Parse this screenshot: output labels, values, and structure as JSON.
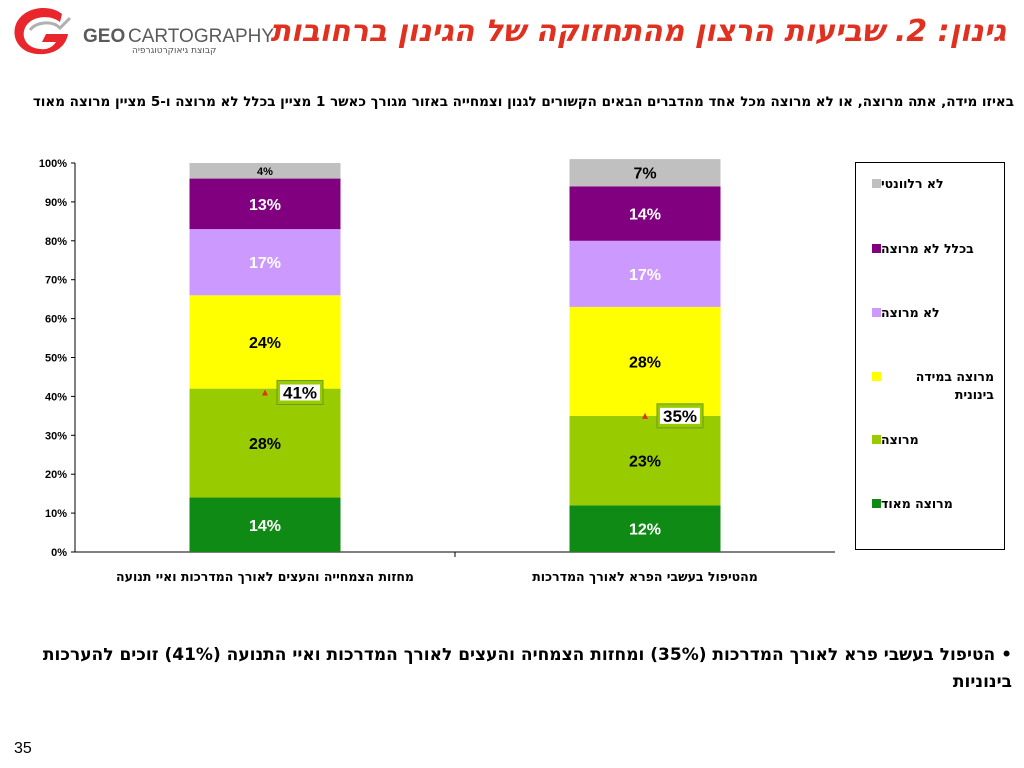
{
  "brand": {
    "geo": "GEO",
    "carto": "CARTOGRAPHY",
    "sub": "קבוצת גיאוקרטוגרפיה"
  },
  "title": "גינון: 2. שביעות הרצון מהתחזוקה של הגינון ברחובות",
  "question": "באיזו מידה, אתה מרוצה, או לא מרוצה מכל אחד מהדברים הבאים הקשורים לגנון וצמחייה באזור מגורך כאשר 1 מציין בכלל לא מרוצה ו-5 מציין מרוצה מאוד",
  "colors": {
    "very_satisfied": "#0f8a14",
    "satisfied": "#99cc00",
    "moderate": "#ffff00",
    "not_satisfied": "#cc99ff",
    "not_at_all": "#800080",
    "irrelevant": "#c0c0c0"
  },
  "chart_data": {
    "type": "bar",
    "stacked": true,
    "categories": [
      "מחזות הצמחייה והעצים לאורך המדרכות ואיי תנועה",
      "מהטיפול בעשבי הפרא לאורך המדרכות"
    ],
    "ylim": [
      0,
      100
    ],
    "yticks": [
      "0%",
      "10%",
      "20%",
      "30%",
      "40%",
      "50%",
      "60%",
      "70%",
      "80%",
      "90%",
      "100%"
    ],
    "series": [
      {
        "name": "מרוצה מאוד",
        "values": [
          14,
          12
        ],
        "labels": [
          "14%",
          "12%"
        ],
        "color": "#0f8a14",
        "label_color": "#ffffff"
      },
      {
        "name": "מרוצה",
        "values": [
          28,
          23
        ],
        "labels": [
          "28%",
          "23%"
        ],
        "color": "#99cc00",
        "label_color": "#000000"
      },
      {
        "name": "מרוצה במידה בינונית",
        "values": [
          24,
          28
        ],
        "labels": [
          "24%",
          "28%"
        ],
        "color": "#ffff00",
        "label_color": "#000000"
      },
      {
        "name": "לא מרוצה",
        "values": [
          17,
          17
        ],
        "labels": [
          "17%",
          "17%"
        ],
        "color": "#cc99ff",
        "label_color": "#ffffff"
      },
      {
        "name": "בכלל לא מרוצה",
        "values": [
          13,
          14
        ],
        "labels": [
          "13%",
          "14%"
        ],
        "color": "#800080",
        "label_color": "#ffffff"
      },
      {
        "name": "לא רלוונטי",
        "values": [
          4,
          7
        ],
        "labels": [
          "4%",
          "7%"
        ],
        "color": "#c0c0c0",
        "label_color": "#000000"
      }
    ],
    "annotations": [
      {
        "category": 0,
        "text": "41%",
        "value": 41
      },
      {
        "category": 1,
        "text": "35%",
        "value": 35
      }
    ],
    "legend": "right",
    "grid": false
  },
  "bullet": "• הטיפול בעשבי פרא לאורך המדרכות (35%) ומחזות הצמחיה והעצים לאורך המדרכות ואיי התנועה (41%) זוכים להערכות בינוניות",
  "page_number": "35"
}
